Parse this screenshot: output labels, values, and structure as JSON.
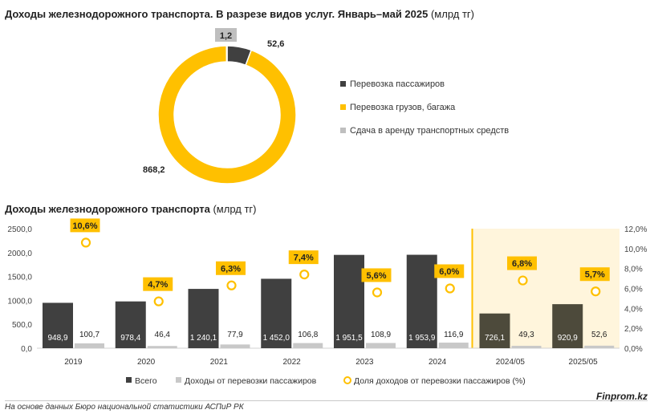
{
  "header": {
    "pie_title": "Доходы железнодорожного транспорта. В разрезе видов услуг. Январь–май 2025",
    "pie_unit": "(млрд тг)",
    "bar_title": "Доходы железнодорожного транспорта",
    "bar_unit": "(млрд тг)"
  },
  "footer": {
    "source": "На основе данных Бюро национальной статистики АСПиР РК",
    "brand": "Finprom.kz"
  },
  "chart_data": [
    {
      "type": "pie",
      "subtype": "donut",
      "title": "Доходы железнодорожного транспорта. В разрезе видов услуг. Январь–май 2025",
      "unit": "(млрд тг)",
      "slices": [
        {
          "label": "Перевозка пассажиров",
          "value": 52.6,
          "value_label": "52,6",
          "color": "#404040"
        },
        {
          "label": "Перевозка грузов, багажа",
          "value": 868.2,
          "value_label": "868,2",
          "color": "#FFC000"
        },
        {
          "label": "Сдача в аренду транспортных средств",
          "value": 1.2,
          "value_label": "1,2",
          "color": "#BFBFBF"
        }
      ],
      "legend_position": "right"
    },
    {
      "type": "bar",
      "title": "Доходы железнодорожного транспорта",
      "unit": "(млрд тг)",
      "categories": [
        "2019",
        "2020",
        "2021",
        "2022",
        "2023",
        "2024",
        "2024/05",
        "2025/05"
      ],
      "series": [
        {
          "name": "Всего",
          "type": "bar",
          "axis": "left",
          "color": "#404040",
          "highlight_color": "#4d4a3b",
          "values": [
            948.9,
            978.4,
            1240.1,
            1452.0,
            1951.5,
            1953.9,
            726.1,
            920.9
          ],
          "labels": [
            "948,9",
            "978,4",
            "1 240,1",
            "1 452,0",
            "1 951,5",
            "1 953,9",
            "726,1",
            "920,9"
          ]
        },
        {
          "name": "Доходы от перевозки пассажиров",
          "type": "bar",
          "axis": "left",
          "color": "#C8C8C8",
          "values": [
            100.7,
            46.4,
            77.9,
            106.8,
            108.9,
            116.9,
            49.3,
            52.6
          ],
          "labels": [
            "100,7",
            "46,4",
            "77,9",
            "106,8",
            "108,9",
            "116,9",
            "49,3",
            "52,6"
          ]
        },
        {
          "name": "Доля доходов от перевозки пассажиров (%)",
          "type": "scatter",
          "axis": "right",
          "color": "#FFC000",
          "values": [
            10.6,
            4.7,
            6.3,
            7.4,
            5.6,
            6.0,
            6.8,
            5.7
          ],
          "labels": [
            "10,6%",
            "4,7%",
            "6,3%",
            "7,4%",
            "5,6%",
            "6,0%",
            "6,8%",
            "5,7%"
          ]
        }
      ],
      "y_left": {
        "min": 0,
        "max": 2500,
        "ticks": [
          "0,0",
          "500,0",
          "1000,0",
          "1500,0",
          "2000,0",
          "2500,0"
        ]
      },
      "y_right": {
        "min": 0,
        "max": 12,
        "ticks": [
          "0,0%",
          "2,0%",
          "4,0%",
          "6,0%",
          "8,0%",
          "10,0%",
          "12,0%"
        ]
      },
      "highlight_categories": [
        "2024/05",
        "2025/05"
      ],
      "highlight_color": "#FFF5DC",
      "grid": false,
      "legend_position": "bottom"
    }
  ]
}
